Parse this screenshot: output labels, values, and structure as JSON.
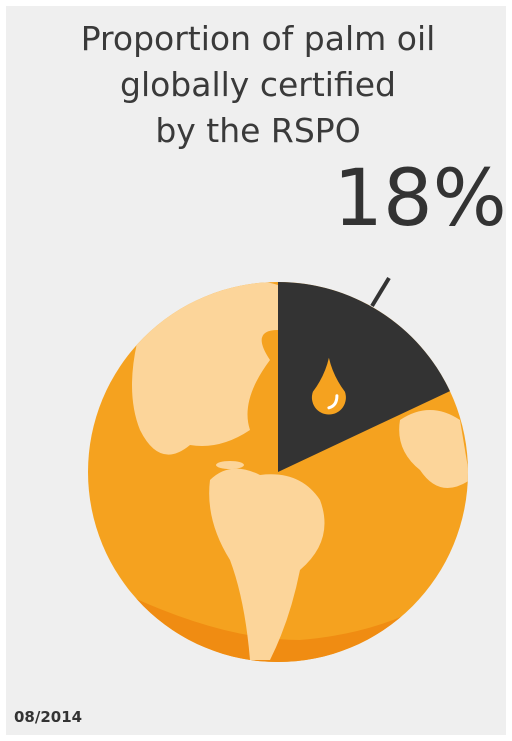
{
  "chart_data": {
    "type": "pie",
    "title": [
      "Proportion of palm oil",
      "globally certified",
      "by the RSPO"
    ],
    "values": [
      18
    ],
    "value_labels": [
      "18%"
    ],
    "color": "#333333"
  },
  "date": "08/2014"
}
